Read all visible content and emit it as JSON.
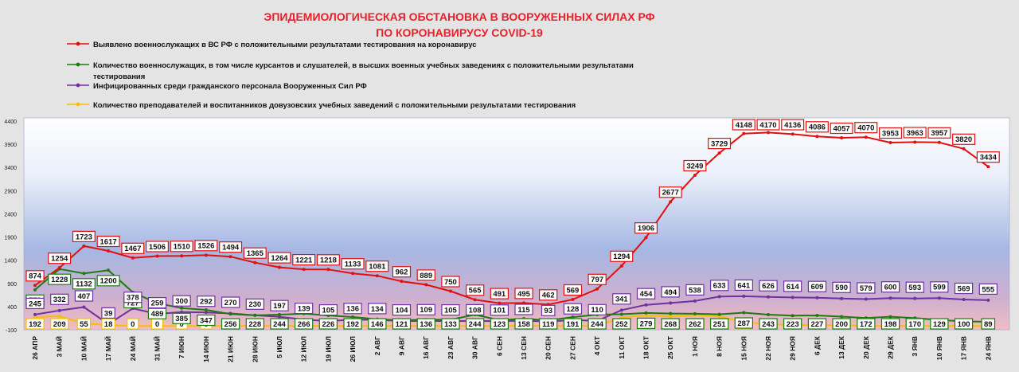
{
  "colors": {
    "detected": "#e01010",
    "students": "#1f7a12",
    "civilians": "#7030a0",
    "teachers": "#f5c000"
  },
  "chart_data": {
    "type": "line",
    "title": [
      "ЭПИДЕМИОЛОГИЧЕСКАЯ ОБСТАНОВКА В ВООРУЖЕННЫХ СИЛАХ РФ",
      "ПО КОРОНАВИРУСУ COVID-19"
    ],
    "ylim": [
      -100,
      4400
    ],
    "yticks": [
      -100,
      400,
      900,
      1400,
      1900,
      2400,
      2900,
      3400,
      3900,
      4400
    ],
    "grid": false,
    "legend_position": "top-left",
    "x": [
      "26 АПР",
      "3 МАЙ",
      "10 МАЙ",
      "17 МАЙ",
      "24 МАЙ",
      "31 МАЙ",
      "7 ИЮН",
      "14 ИЮН",
      "21 ИЮН",
      "28 ИЮН",
      "5 ИЮЛ",
      "12 ИЮЛ",
      "19 ИЮЛ",
      "26 ИЮЛ",
      "2 АВГ",
      "9 АВГ",
      "16 АВГ",
      "23 АВГ",
      "30 АВГ",
      "6 СЕН",
      "13 СЕН",
      "20 СЕН",
      "27 СЕН",
      "4 ОКТ",
      "11 ОКТ",
      "18 ОКТ",
      "25 ОКТ",
      "1 НОЯ",
      "8 НОЯ",
      "15 НОЯ",
      "22 НОЯ",
      "29 НОЯ",
      "6 ДЕК",
      "13 ДЕК",
      "20 ДЕК",
      "29 ДЕК",
      "3 ЯНВ",
      "10 ЯНВ",
      "17 ЯНВ",
      "24 ЯНВ"
    ],
    "series": [
      {
        "key": "detected",
        "name": "Выявлено военнослужащих в ВС РФ с положительными результатами тестирования на коронавирус",
        "legend_lines": [
          "Выявлено военнослужащих в ВС РФ с положительными результатами тестирования на коронавирус"
        ],
        "values": [
          874,
          1254,
          1723,
          1617,
          1467,
          1506,
          1510,
          1526,
          1494,
          1365,
          1264,
          1221,
          1218,
          1133,
          1081,
          962,
          889,
          750,
          565,
          491,
          495,
          462,
          569,
          797,
          1294,
          1906,
          2677,
          3249,
          3729,
          4148,
          4170,
          4136,
          4086,
          4057,
          4070,
          3953,
          3963,
          3957,
          3820,
          3434
        ]
      },
      {
        "key": "students",
        "name": "Количество военнослужащих, в том числе курсантов и слушателей, в высших военных учебных заведениях с положительными результатами тестирования",
        "legend_lines": [
          "Количество военнослужащих, в том числе курсантов и слушателей, в высших военных учебных заведениях с положительными результатами",
          "тестирования"
        ],
        "values": [
          779,
          1228,
          1132,
          1200,
          727,
          489,
          385,
          347,
          256,
          228,
          244,
          266,
          226,
          192,
          146,
          121,
          136,
          133,
          244,
          123,
          158,
          119,
          191,
          244,
          252,
          279,
          268,
          262,
          251,
          287,
          243,
          223,
          227,
          200,
          172,
          198,
          170,
          129,
          100,
          89
        ]
      },
      {
        "key": "civilians",
        "name": "Инфицированных среди гражданского персонала Вооруженных Сил РФ",
        "legend_lines": [
          "Инфицированных среди гражданского персонала Вооруженных Сил РФ"
        ],
        "values": [
          245,
          332,
          407,
          39,
          378,
          259,
          300,
          292,
          270,
          230,
          197,
          139,
          105,
          136,
          134,
          104,
          109,
          105,
          108,
          101,
          115,
          93,
          128,
          110,
          341,
          454,
          494,
          538,
          633,
          641,
          626,
          614,
          609,
          590,
          579,
          600,
          593,
          599,
          569,
          555
        ]
      },
      {
        "key": "teachers",
        "name": "Количество преподавателей и воспитанников довузовских учебных заведений с положительными результатами тестирования",
        "legend_lines": [
          "Количество преподавателей и воспитанников довузовских учебных заведений с положительными результатами тестирования"
        ],
        "values": [
          192,
          209,
          55,
          18,
          0,
          0,
          0,
          0,
          0,
          0,
          0,
          0,
          0,
          0,
          0,
          0,
          0,
          0,
          0,
          0,
          0,
          0,
          0,
          0,
          181,
          229,
          201,
          237,
          207,
          84,
          32,
          25,
          18,
          19,
          0,
          0,
          0,
          0,
          0,
          0
        ]
      }
    ]
  }
}
